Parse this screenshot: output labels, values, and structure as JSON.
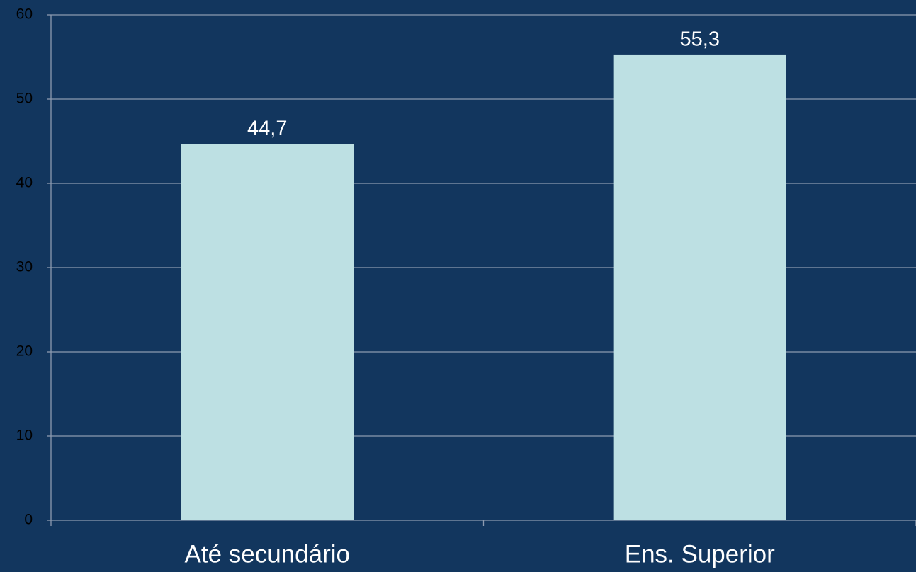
{
  "chart_data": {
    "type": "bar",
    "categories": [
      "Até secundário",
      "Ens. Superior"
    ],
    "values": [
      44.7,
      55.3
    ],
    "value_labels": [
      "44,7",
      "55,3"
    ],
    "color": "#bde0e3",
    "ylim": [
      0,
      60
    ],
    "yticks": [
      0,
      10,
      20,
      30,
      40,
      50,
      60
    ],
    "grid": true
  }
}
